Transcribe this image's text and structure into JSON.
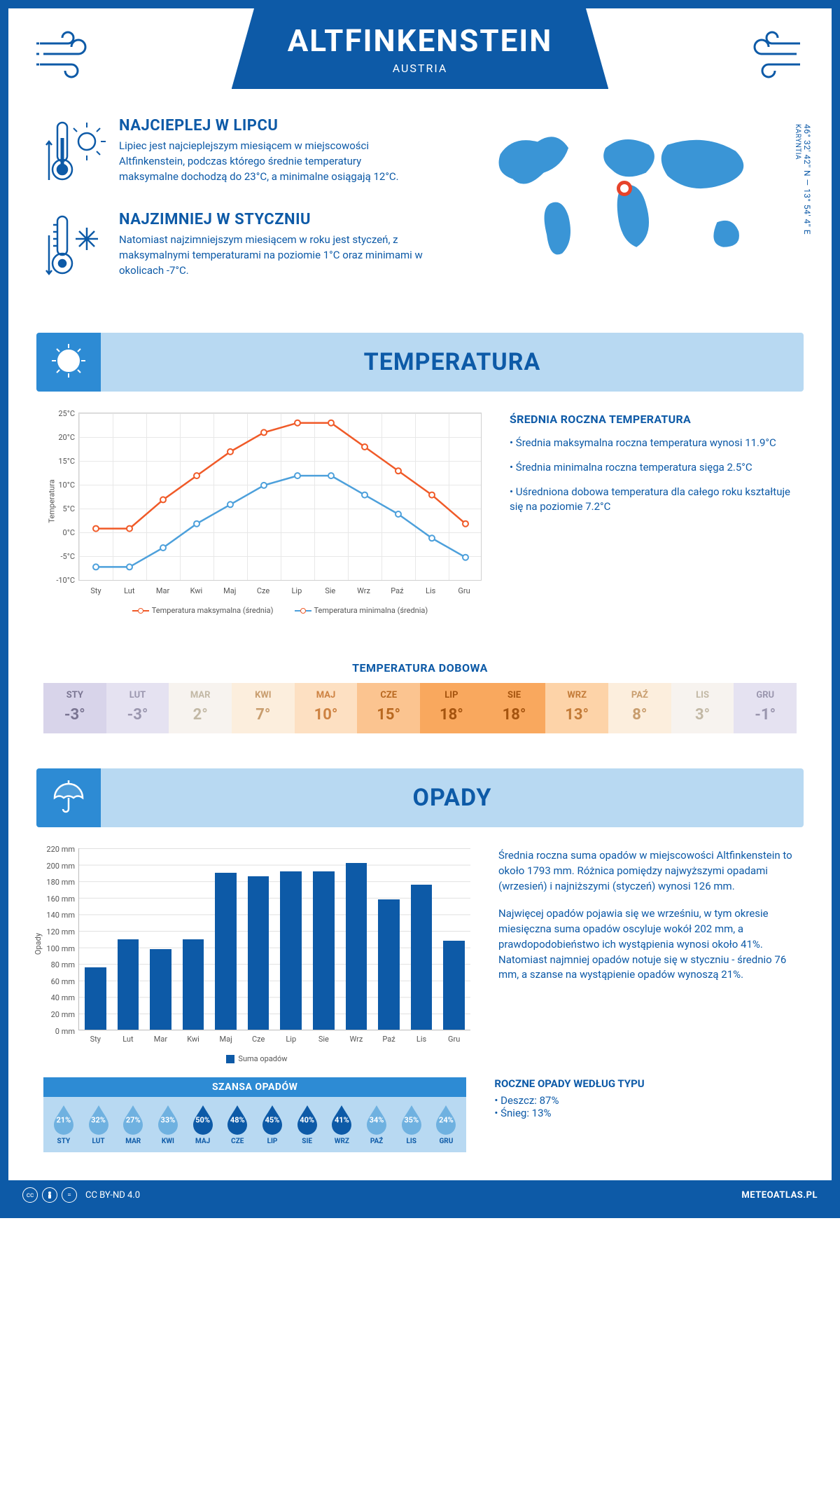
{
  "header": {
    "title": "ALTFINKENSTEIN",
    "subtitle": "AUSTRIA"
  },
  "coords": {
    "lat": "46° 32' 42'' N",
    "lon": "13° 54' 4'' E",
    "region": "KARYNTIA"
  },
  "overview": {
    "hot_title": "NAJCIEPLEJ W LIPCU",
    "hot_text": "Lipiec jest najcieplejszym miesiącem w miejscowości Altfinkenstein, podczas którego średnie temperatury maksymalne dochodzą do 23°C, a minimalne osiągają 12°C.",
    "cold_title": "NAJZIMNIEJ W STYCZNIU",
    "cold_text": "Natomiast najzimniejszym miesiącem w roku jest styczeń, z maksymalnymi temperaturami na poziomie 1°C oraz minimami w okolicach -7°C."
  },
  "temp_section_title": "TEMPERATURA",
  "temp_chart": {
    "type": "line",
    "months": [
      "Sty",
      "Lut",
      "Mar",
      "Kwi",
      "Maj",
      "Cze",
      "Lip",
      "Sie",
      "Wrz",
      "Paź",
      "Lis",
      "Gru"
    ],
    "tmax": [
      1,
      1,
      7,
      12,
      17,
      21,
      23,
      23,
      18,
      13,
      8,
      2
    ],
    "tmin": [
      -7,
      -7,
      -3,
      2,
      6,
      10,
      12,
      12,
      8,
      4,
      -1,
      -5
    ],
    "ymin": -10,
    "ymax": 25,
    "ystep": 5,
    "max_color": "#f05a28",
    "min_color": "#4da0db",
    "grid_color": "#e8e8e8",
    "ylabel": "Temperatura",
    "legend_max": "Temperatura maksymalna (średnia)",
    "legend_min": "Temperatura minimalna (średnia)"
  },
  "temp_annual": {
    "title": "ŚREDNIA ROCZNA TEMPERATURA",
    "p1": "• Średnia maksymalna roczna temperatura wynosi 11.9°C",
    "p2": "• Średnia minimalna roczna temperatura sięga 2.5°C",
    "p3": "• Uśredniona dobowa temperatura dla całego roku kształtuje się na poziomie 7.2°C"
  },
  "daily_temp": {
    "title": "TEMPERATURA DOBOWA",
    "months": [
      "STY",
      "LUT",
      "MAR",
      "KWI",
      "MAJ",
      "CZE",
      "LIP",
      "SIE",
      "WRZ",
      "PAŹ",
      "LIS",
      "GRU"
    ],
    "values": [
      "-3°",
      "-3°",
      "2°",
      "7°",
      "10°",
      "15°",
      "18°",
      "18°",
      "13°",
      "8°",
      "3°",
      "-1°"
    ],
    "bg": [
      "#d8d4ea",
      "#e5e2f1",
      "#f7f3ef",
      "#fceedd",
      "#fde0c2",
      "#fbc490",
      "#f9a85e",
      "#f9a85e",
      "#fdd3a8",
      "#fceedd",
      "#f7f3ef",
      "#e5e2f1"
    ],
    "fg": [
      "#7a7592",
      "#9a96ae",
      "#c2b8a5",
      "#c89d6e",
      "#cd8242",
      "#b8681f",
      "#a5540f",
      "#a5540f",
      "#c37b38",
      "#c89d6e",
      "#c2b8a5",
      "#9a96ae"
    ]
  },
  "opady_section_title": "OPADY",
  "opady_chart": {
    "type": "bar",
    "months": [
      "Sty",
      "Lut",
      "Mar",
      "Kwi",
      "Maj",
      "Cze",
      "Lip",
      "Sie",
      "Wrz",
      "Paź",
      "Lis",
      "Gru"
    ],
    "values": [
      76,
      110,
      98,
      110,
      190,
      186,
      192,
      192,
      202,
      158,
      176,
      108
    ],
    "ymax": 220,
    "ystep": 20,
    "bar_color": "#0d5aa7",
    "ylabel": "Opady",
    "legend": "Suma opadów"
  },
  "opady_text": {
    "p1": "Średnia roczna suma opadów w miejscowości Altfinkenstein to około 1793 mm. Różnica pomiędzy najwyższymi opadami (wrzesień) i najniższymi (styczeń) wynosi 126 mm.",
    "p2": "Najwięcej opadów pojawia się we wrześniu, w tym okresie miesięczna suma opadów oscyluje wokół 202 mm, a prawdopodobieństwo ich wystąpienia wynosi około 41%. Natomiast najmniej opadów notuje się w styczniu - średnio 76 mm, a szanse na wystąpienie opadów wynoszą 21%."
  },
  "szansa": {
    "title": "SZANSA OPADÓW",
    "months": [
      "STY",
      "LUT",
      "MAR",
      "KWI",
      "MAJ",
      "CZE",
      "LIP",
      "SIE",
      "WRZ",
      "PAŹ",
      "LIS",
      "GRU"
    ],
    "pct": [
      "21%",
      "32%",
      "27%",
      "33%",
      "50%",
      "48%",
      "45%",
      "40%",
      "41%",
      "34%",
      "35%",
      "24%"
    ],
    "full_color": "#0d5aa7",
    "light_color": "#6fb1e0",
    "threshold": 40
  },
  "annual_type": {
    "title": "ROCZNE OPADY WEDŁUG TYPU",
    "rain": "• Deszcz: 87%",
    "snow": "• Śnieg: 13%"
  },
  "footer": {
    "license": "CC BY-ND 4.0",
    "site": "METEOATLAS.PL"
  }
}
